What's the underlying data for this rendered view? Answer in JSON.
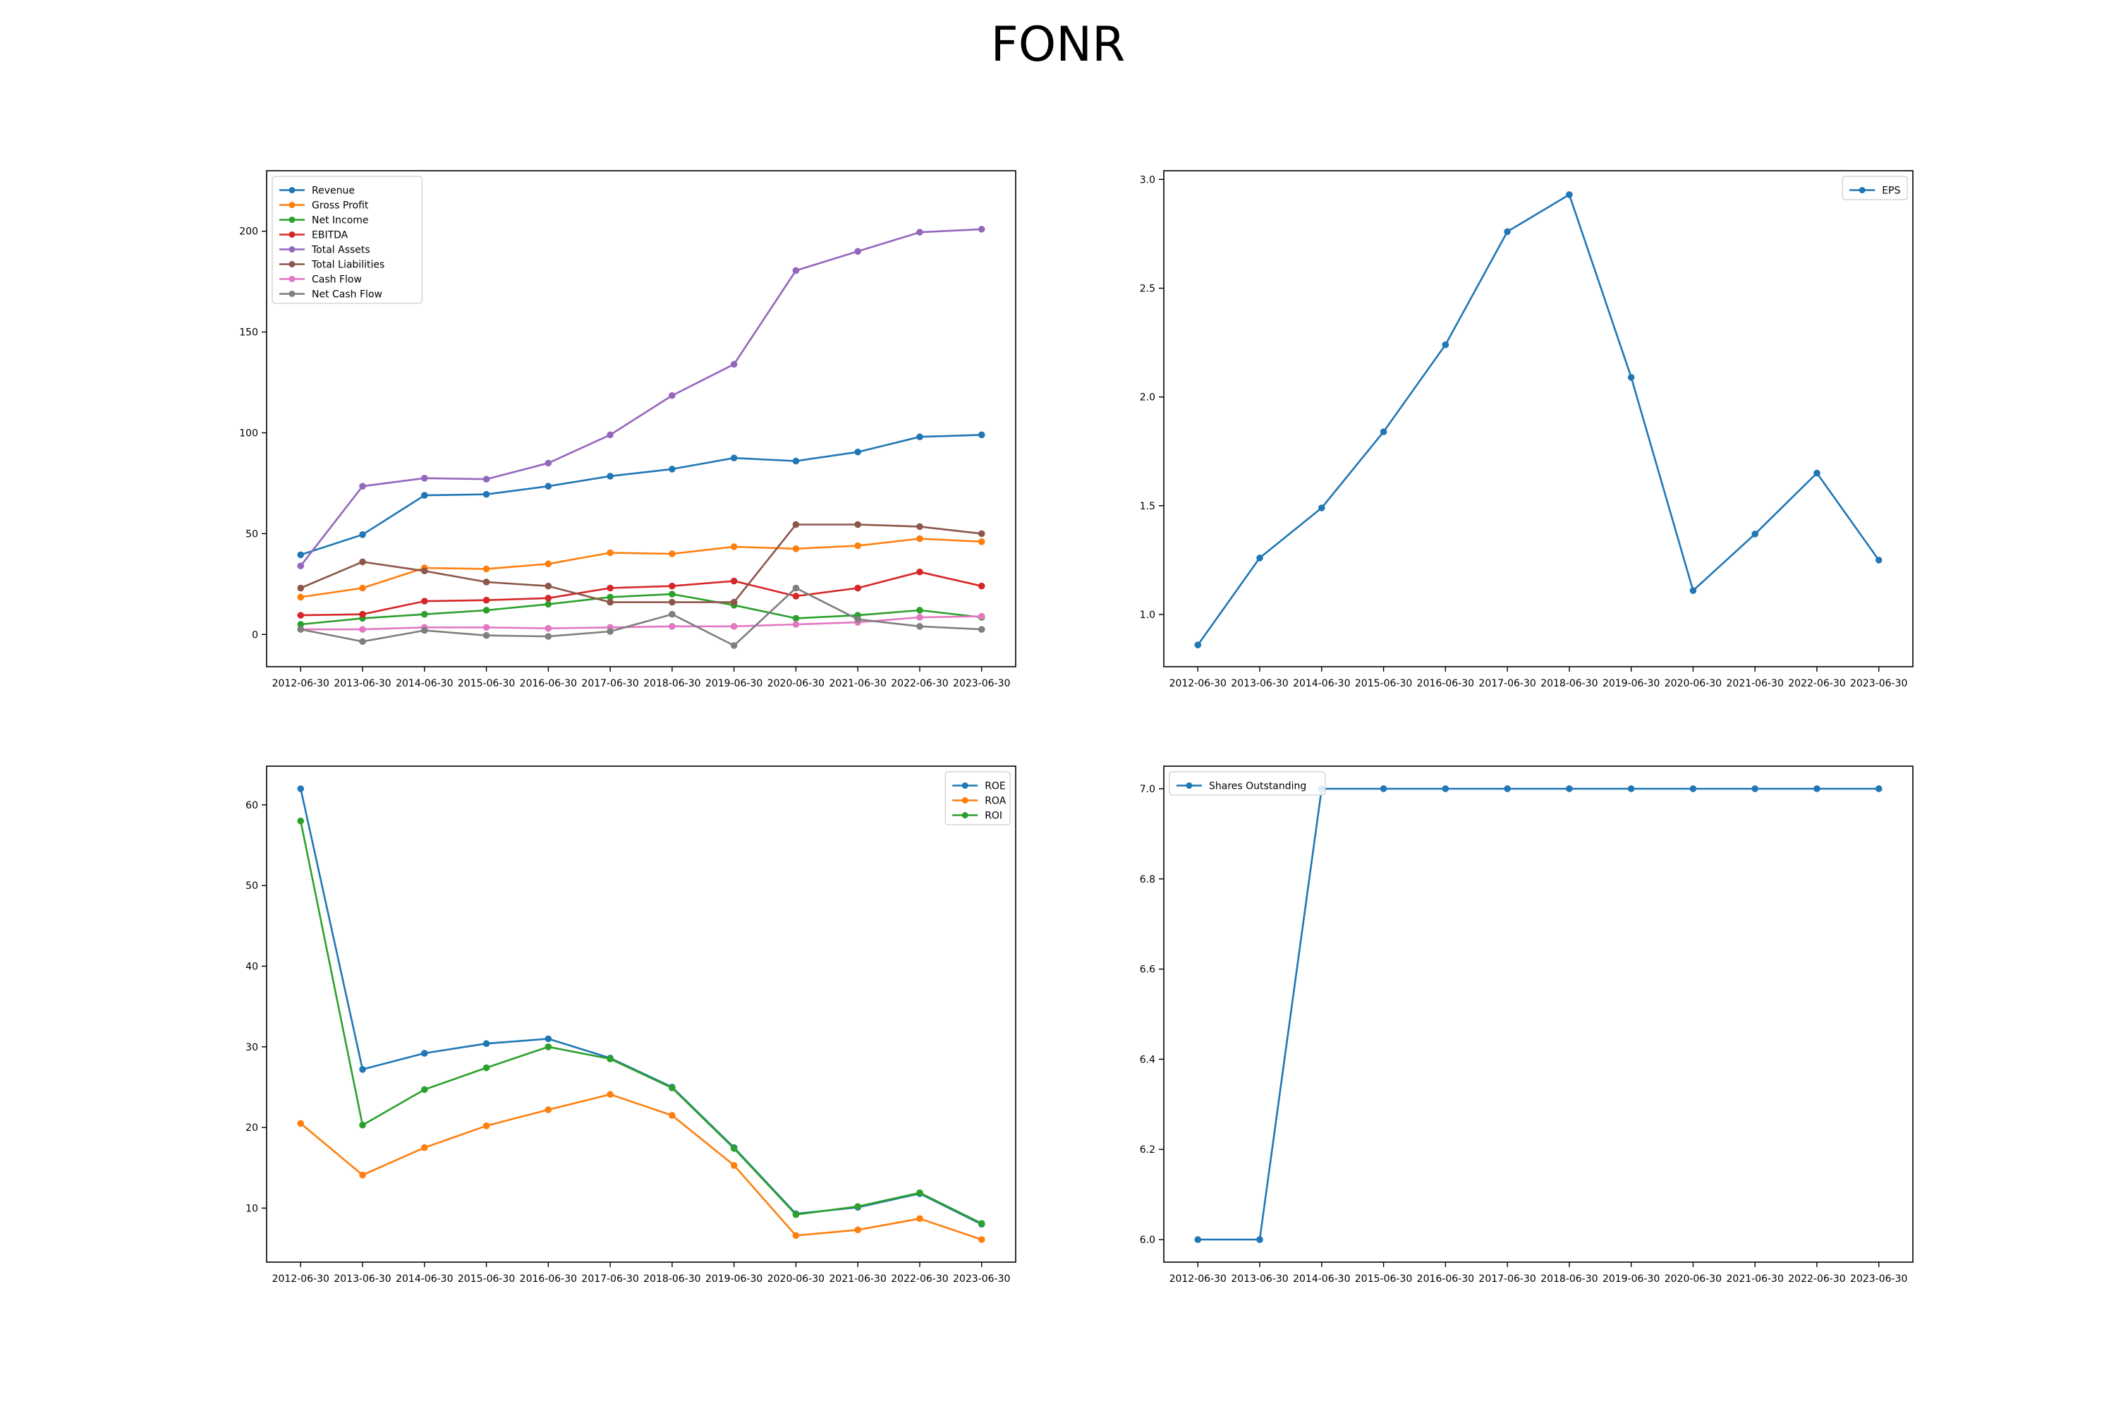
{
  "figure": {
    "title": "FONR"
  },
  "chart_data": [
    {
      "type": "line",
      "title": "",
      "xlabel": "",
      "ylabel": "",
      "categories": [
        "2012-06-30",
        "2013-06-30",
        "2014-06-30",
        "2015-06-30",
        "2016-06-30",
        "2017-06-30",
        "2018-06-30",
        "2019-06-30",
        "2020-06-30",
        "2021-06-30",
        "2022-06-30",
        "2023-06-30"
      ],
      "ylim": [
        -16,
        230
      ],
      "yticks": [
        0,
        50,
        100,
        150,
        200
      ],
      "ytick_labels": [
        "0",
        "50",
        "100",
        "150",
        "200"
      ],
      "legend": "upper-left",
      "grid": false,
      "series": [
        {
          "name": "Revenue",
          "color": "#1f77b4",
          "values": [
            39.5,
            49.5,
            69,
            69.5,
            73.5,
            78.5,
            82,
            87.5,
            86,
            90.5,
            98,
            99
          ]
        },
        {
          "name": "Gross Profit",
          "color": "#ff7f0e",
          "values": [
            18.5,
            23,
            33,
            32.5,
            35,
            40.5,
            40,
            43.5,
            42.5,
            44,
            47.5,
            46
          ]
        },
        {
          "name": "Net Income",
          "color": "#2ca02c",
          "values": [
            5,
            8,
            10,
            12,
            15,
            18.5,
            20,
            14.5,
            8,
            9.5,
            12,
            8.5
          ]
        },
        {
          "name": "EBITDA",
          "color": "#d62728",
          "values": [
            9.5,
            10,
            16.5,
            17,
            18,
            23,
            24,
            26.5,
            19,
            23,
            31,
            24
          ]
        },
        {
          "name": "Total Assets",
          "color": "#9467bd",
          "values": [
            34,
            73.5,
            77.5,
            77,
            85,
            99,
            118.5,
            134,
            180.5,
            190,
            199.5,
            201
          ]
        },
        {
          "name": "Total Liabilities",
          "color": "#8c564b",
          "values": [
            23,
            36,
            31.5,
            26,
            24,
            16,
            16,
            16,
            54.5,
            54.5,
            53.5,
            50
          ]
        },
        {
          "name": "Cash Flow",
          "color": "#e377c2",
          "values": [
            2.5,
            2.5,
            3.5,
            3.5,
            3,
            3.5,
            4,
            4,
            5,
            6,
            8.5,
            9
          ]
        },
        {
          "name": "Net Cash Flow",
          "color": "#7f7f7f",
          "values": [
            2.5,
            -3.5,
            2,
            -0.5,
            -1,
            1.5,
            10,
            -5.5,
            23,
            7.5,
            4,
            2.5
          ]
        }
      ]
    },
    {
      "type": "line",
      "title": "",
      "xlabel": "",
      "ylabel": "",
      "categories": [
        "2012-06-30",
        "2013-06-30",
        "2014-06-30",
        "2015-06-30",
        "2016-06-30",
        "2017-06-30",
        "2018-06-30",
        "2019-06-30",
        "2020-06-30",
        "2021-06-30",
        "2022-06-30",
        "2023-06-30"
      ],
      "ylim": [
        0.76,
        3.04
      ],
      "yticks": [
        1.0,
        1.5,
        2.0,
        2.5,
        3.0
      ],
      "ytick_labels": [
        "1.0",
        "1.5",
        "2.0",
        "2.5",
        "3.0"
      ],
      "legend": "upper-right",
      "grid": false,
      "series": [
        {
          "name": "EPS",
          "color": "#1f77b4",
          "values": [
            0.86,
            1.26,
            1.49,
            1.84,
            2.24,
            2.76,
            2.93,
            2.09,
            1.11,
            1.37,
            1.65,
            1.25
          ]
        }
      ]
    },
    {
      "type": "line",
      "title": "",
      "xlabel": "",
      "ylabel": "",
      "categories": [
        "2012-06-30",
        "2013-06-30",
        "2014-06-30",
        "2015-06-30",
        "2016-06-30",
        "2017-06-30",
        "2018-06-30",
        "2019-06-30",
        "2020-06-30",
        "2021-06-30",
        "2022-06-30",
        "2023-06-30"
      ],
      "ylim": [
        3.3,
        64.8
      ],
      "yticks": [
        10,
        20,
        30,
        40,
        50,
        60
      ],
      "ytick_labels": [
        "10",
        "20",
        "30",
        "40",
        "50",
        "60"
      ],
      "legend": "upper-right",
      "grid": false,
      "series": [
        {
          "name": "ROE",
          "color": "#1f77b4",
          "values": [
            62,
            27.2,
            29.2,
            30.4,
            31,
            28.6,
            25,
            17.5,
            9.3,
            10.1,
            11.8,
            8
          ]
        },
        {
          "name": "ROA",
          "color": "#ff7f0e",
          "values": [
            20.5,
            14.1,
            17.5,
            20.2,
            22.2,
            24.1,
            21.5,
            15.3,
            6.6,
            7.3,
            8.7,
            6.1
          ]
        },
        {
          "name": "ROI",
          "color": "#2ca02c",
          "values": [
            58,
            20.3,
            24.7,
            27.4,
            30,
            28.5,
            24.9,
            17.4,
            9.2,
            10.2,
            11.9,
            8.1
          ]
        }
      ]
    },
    {
      "type": "line",
      "title": "",
      "xlabel": "",
      "ylabel": "",
      "categories": [
        "2012-06-30",
        "2013-06-30",
        "2014-06-30",
        "2015-06-30",
        "2016-06-30",
        "2017-06-30",
        "2018-06-30",
        "2019-06-30",
        "2020-06-30",
        "2021-06-30",
        "2022-06-30",
        "2023-06-30"
      ],
      "ylim": [
        5.95,
        7.05
      ],
      "yticks": [
        6.0,
        6.2,
        6.4,
        6.6,
        6.8,
        7.0
      ],
      "ytick_labels": [
        "6.0",
        "6.2",
        "6.4",
        "6.6",
        "6.8",
        "7.0"
      ],
      "legend": "upper-left",
      "grid": false,
      "series": [
        {
          "name": "Shares Outstanding",
          "color": "#1f77b4",
          "values": [
            6,
            6,
            7,
            7,
            7,
            7,
            7,
            7,
            7,
            7,
            7,
            7
          ]
        }
      ]
    }
  ]
}
